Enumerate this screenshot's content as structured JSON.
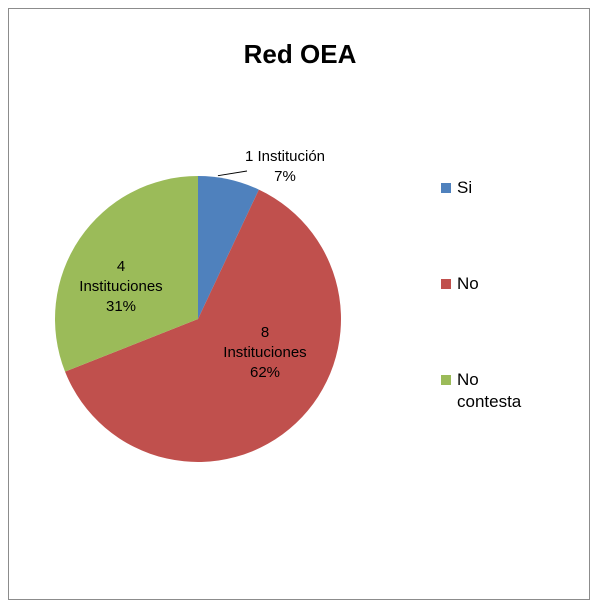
{
  "chart_data": {
    "type": "pie",
    "title": "Red OEA",
    "categories": [
      "Si",
      "No",
      "No contesta"
    ],
    "values": [
      7,
      62,
      31
    ],
    "counts": [
      1,
      8,
      4
    ],
    "data_labels": [
      {
        "count_text": "1 Institución",
        "pct_text": "7%"
      },
      {
        "count_text": "8",
        "unit_text": "Instituciones",
        "pct_text": "62%"
      },
      {
        "count_text": "4",
        "unit_text": "Instituciones",
        "pct_text": "31%"
      }
    ],
    "colors": [
      "#4f81bd",
      "#c0504d",
      "#9bbb59"
    ],
    "legend": {
      "position": "right",
      "items": [
        {
          "label": "Si",
          "color": "#4f81bd"
        },
        {
          "label": "No",
          "color": "#c0504d"
        },
        {
          "label": "No contesta",
          "color": "#9bbb59"
        }
      ]
    }
  }
}
